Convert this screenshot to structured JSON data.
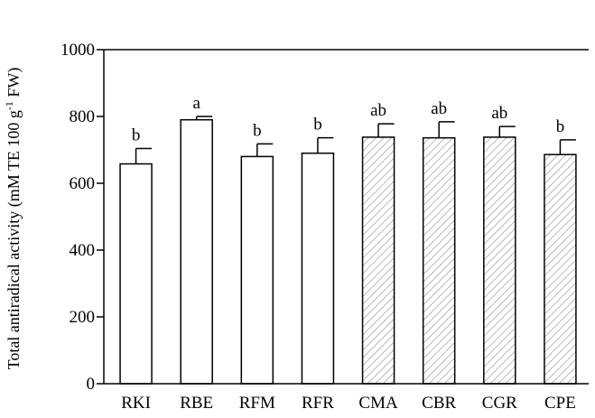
{
  "chart_data": {
    "type": "bar",
    "title": "",
    "ylabel": "Total antiradical activity (mM TE 100 g",
    "ylabel_superscript": "-1",
    "ylabel_suffix": " FW)",
    "xlabel": "",
    "ylim": [
      0,
      1000
    ],
    "yticks": [
      0,
      200,
      400,
      600,
      800,
      1000
    ],
    "categories": [
      "RKI",
      "RBE",
      "RFM",
      "RFR",
      "CMA",
      "CBR",
      "CGR",
      "CPE"
    ],
    "values": [
      658,
      790,
      680,
      690,
      738,
      736,
      738,
      686
    ],
    "errors": [
      46,
      10,
      38,
      46,
      40,
      48,
      32,
      44
    ],
    "significance": [
      "b",
      "a",
      "b",
      "b",
      "ab",
      "ab",
      "ab",
      "b"
    ],
    "fill_style": [
      "plain",
      "plain",
      "plain",
      "plain",
      "hatched",
      "hatched",
      "hatched",
      "hatched"
    ],
    "colors": {
      "plain_fill": "#ffffff",
      "hatch_line": "#a8a8a8",
      "stroke": "#000000"
    }
  }
}
